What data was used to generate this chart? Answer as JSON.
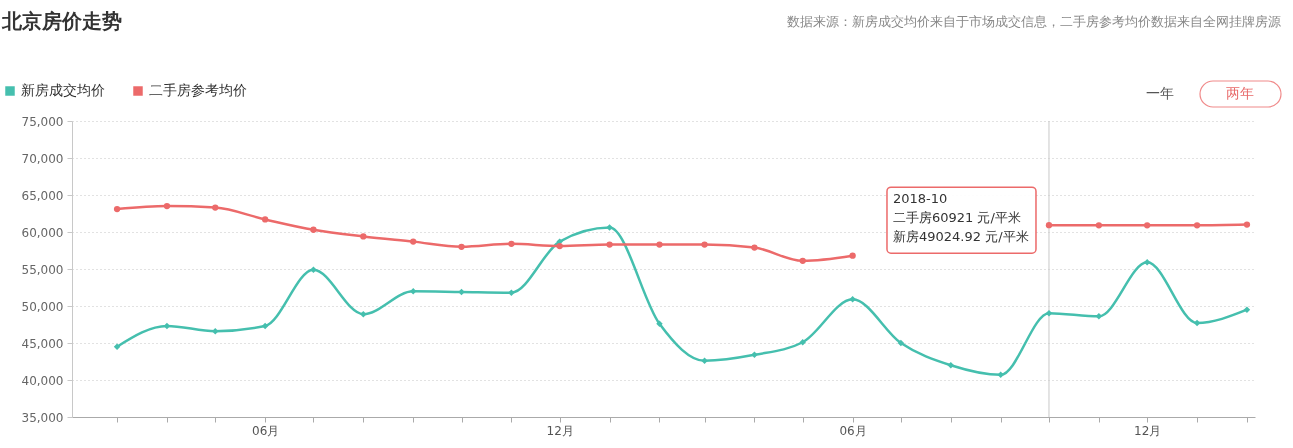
{
  "chart_data": {
    "type": "line",
    "title": "北京房价走势",
    "subtitle": "数据来源：新房成交均价来自于市场成交信息，二手房参考均价数据来自全网挂牌房源",
    "x": [
      "2017-03",
      "2017-04",
      "2017-05",
      "2017-06",
      "2017-07",
      "2017-08",
      "2017-09",
      "2017-10",
      "2017-11",
      "2017-12",
      "2018-01",
      "2018-02",
      "2018-03",
      "2018-04",
      "2018-05",
      "2018-06",
      "2018-07",
      "2018-08",
      "2018-09",
      "2018-10",
      "2018-11",
      "2018-12",
      "2019-01",
      "2019-02"
    ],
    "series": [
      {
        "name": "新房成交均价",
        "color": "#45bfae",
        "marker": "diamond",
        "values": [
          44500,
          47300,
          46600,
          47300,
          54900,
          48900,
          52000,
          51900,
          51800,
          58700,
          60600,
          47600,
          42600,
          43400,
          45100,
          50900,
          45000,
          42000,
          40700,
          49024.92,
          48600,
          55900,
          47700,
          49500
        ]
      },
      {
        "name": "二手房参考均价",
        "color": "#ec6a6a",
        "marker": "circle",
        "values": [
          63100,
          63500,
          63300,
          61700,
          60300,
          59400,
          58700,
          58000,
          58400,
          58100,
          58300,
          58300,
          58300,
          57900,
          56100,
          56800,
          null,
          null,
          null,
          60921,
          60900,
          60900,
          60900,
          61000
        ]
      }
    ],
    "xlim": [
      "2017-02-01",
      "2019-02-06"
    ],
    "xticks": [
      {
        "value": "2017-03",
        "label": null
      },
      {
        "value": "2017-04",
        "label": null
      },
      {
        "value": "2017-05",
        "label": null
      },
      {
        "value": "2017-06",
        "label": "06月"
      },
      {
        "value": "2017-07",
        "label": null
      },
      {
        "value": "2017-08",
        "label": null
      },
      {
        "value": "2017-09",
        "label": null
      },
      {
        "value": "2017-10",
        "label": null
      },
      {
        "value": "2017-11",
        "label": null
      },
      {
        "value": "2017-12",
        "label": "12月"
      },
      {
        "value": "2018-01",
        "label": null
      },
      {
        "value": "2018-02",
        "label": null
      },
      {
        "value": "2018-03",
        "label": null
      },
      {
        "value": "2018-04",
        "label": null
      },
      {
        "value": "2018-05",
        "label": null
      },
      {
        "value": "2018-06",
        "label": "06月"
      },
      {
        "value": "2018-07",
        "label": null
      },
      {
        "value": "2018-08",
        "label": null
      },
      {
        "value": "2018-09",
        "label": null
      },
      {
        "value": "2018-10",
        "label": null
      },
      {
        "value": "2018-11",
        "label": null
      },
      {
        "value": "2018-12",
        "label": "12月"
      },
      {
        "value": "2019-01",
        "label": null
      },
      {
        "value": "2019-02",
        "label": null
      }
    ],
    "ylim": [
      35000,
      75000
    ],
    "yticks": [
      {
        "value": 35000,
        "label": "35,000"
      },
      {
        "value": 40000,
        "label": "40,000"
      },
      {
        "value": 45000,
        "label": "45,000"
      },
      {
        "value": 50000,
        "label": "50,000"
      },
      {
        "value": 55000,
        "label": "55,000"
      },
      {
        "value": 60000,
        "label": "60,000"
      },
      {
        "value": 65000,
        "label": "65,000"
      },
      {
        "value": 70000,
        "label": "70,000"
      },
      {
        "value": 75000,
        "label": "75,000"
      }
    ],
    "grid": "y",
    "legend": "top left",
    "line_style": "solid",
    "ref_lines": [
      {
        "axis": "x",
        "value": "2018-10",
        "color": "#c8c8c8"
      }
    ],
    "annotations": [
      "2018-10",
      {
        "text": "二手房60921 元/平米",
        "x": "2018-10",
        "y": 60921
      },
      {
        "text": "新房49024.92 元/平米",
        "x": "2018-10",
        "y": 60921
      },
      "一年",
      "两年"
    ]
  }
}
